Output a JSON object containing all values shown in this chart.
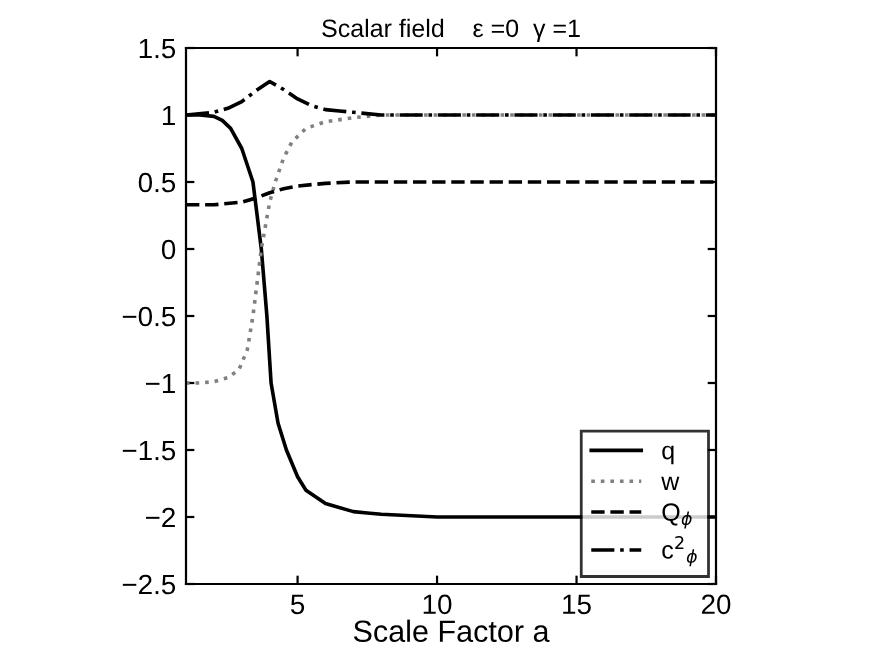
{
  "chart_data": {
    "type": "line",
    "title": "Scalar field    ε =0  γ =1",
    "xlabel": "Scale Factor a",
    "xlim": [
      1,
      20
    ],
    "ylim": [
      -2.5,
      1.5
    ],
    "xticks": [
      5,
      10,
      15,
      20
    ],
    "yticks": [
      -2.5,
      -2,
      -1.5,
      -1,
      -0.5,
      0,
      0.5,
      1,
      1.5
    ],
    "grid": false,
    "legend": "bottom right",
    "marker": "none",
    "series": [
      {
        "name": "q",
        "color": "#000000",
        "line_style": "solid",
        "x": [
          1,
          1.5,
          2,
          2.3,
          2.6,
          3,
          3.4,
          3.7,
          3.9,
          4.05,
          4.3,
          4.6,
          5,
          5.3,
          6,
          7,
          7.5,
          8,
          10,
          12,
          15,
          20
        ],
        "values": [
          1,
          1,
          0.99,
          0.96,
          0.9,
          0.75,
          0.5,
          0,
          -0.5,
          -1,
          -1.3,
          -1.5,
          -1.7,
          -1.8,
          -1.9,
          -1.96,
          -1.97,
          -1.98,
          -2,
          -2,
          -2,
          -2
        ]
      },
      {
        "name": "w",
        "color": "#808080",
        "line_style": "dotted",
        "x": [
          1,
          1.5,
          2,
          2.5,
          2.9,
          3.2,
          3.4,
          3.7,
          4,
          4.2,
          4.5,
          4.8,
          5.3,
          6,
          7,
          8,
          10,
          15,
          20
        ],
        "values": [
          -1,
          -1,
          -0.99,
          -0.96,
          -0.9,
          -0.75,
          -0.5,
          0,
          0.35,
          0.5,
          0.68,
          0.8,
          0.9,
          0.95,
          0.98,
          1,
          1,
          1,
          1
        ]
      },
      {
        "name": "Q$_{ϕ}$",
        "color": "#000000",
        "line_style": "dashed",
        "x": [
          1,
          2,
          3,
          3.5,
          4,
          4.5,
          5,
          6,
          7,
          8,
          10,
          15,
          20
        ],
        "values": [
          0.33,
          0.33,
          0.35,
          0.38,
          0.42,
          0.45,
          0.47,
          0.49,
          0.5,
          0.5,
          0.5,
          0.5,
          0.5
        ]
      },
      {
        "name": "c$^{2}$$_{ϕ}$",
        "color": "#000000",
        "line_style": "dashdot",
        "x": [
          1,
          2,
          2.5,
          3,
          3.5,
          4,
          4.5,
          5,
          5.5,
          6,
          6.5,
          7,
          8,
          10,
          15,
          20
        ],
        "values": [
          1,
          1.02,
          1.05,
          1.1,
          1.18,
          1.25,
          1.19,
          1.12,
          1.07,
          1.04,
          1.03,
          1.02,
          1,
          1,
          1,
          1
        ]
      }
    ]
  }
}
